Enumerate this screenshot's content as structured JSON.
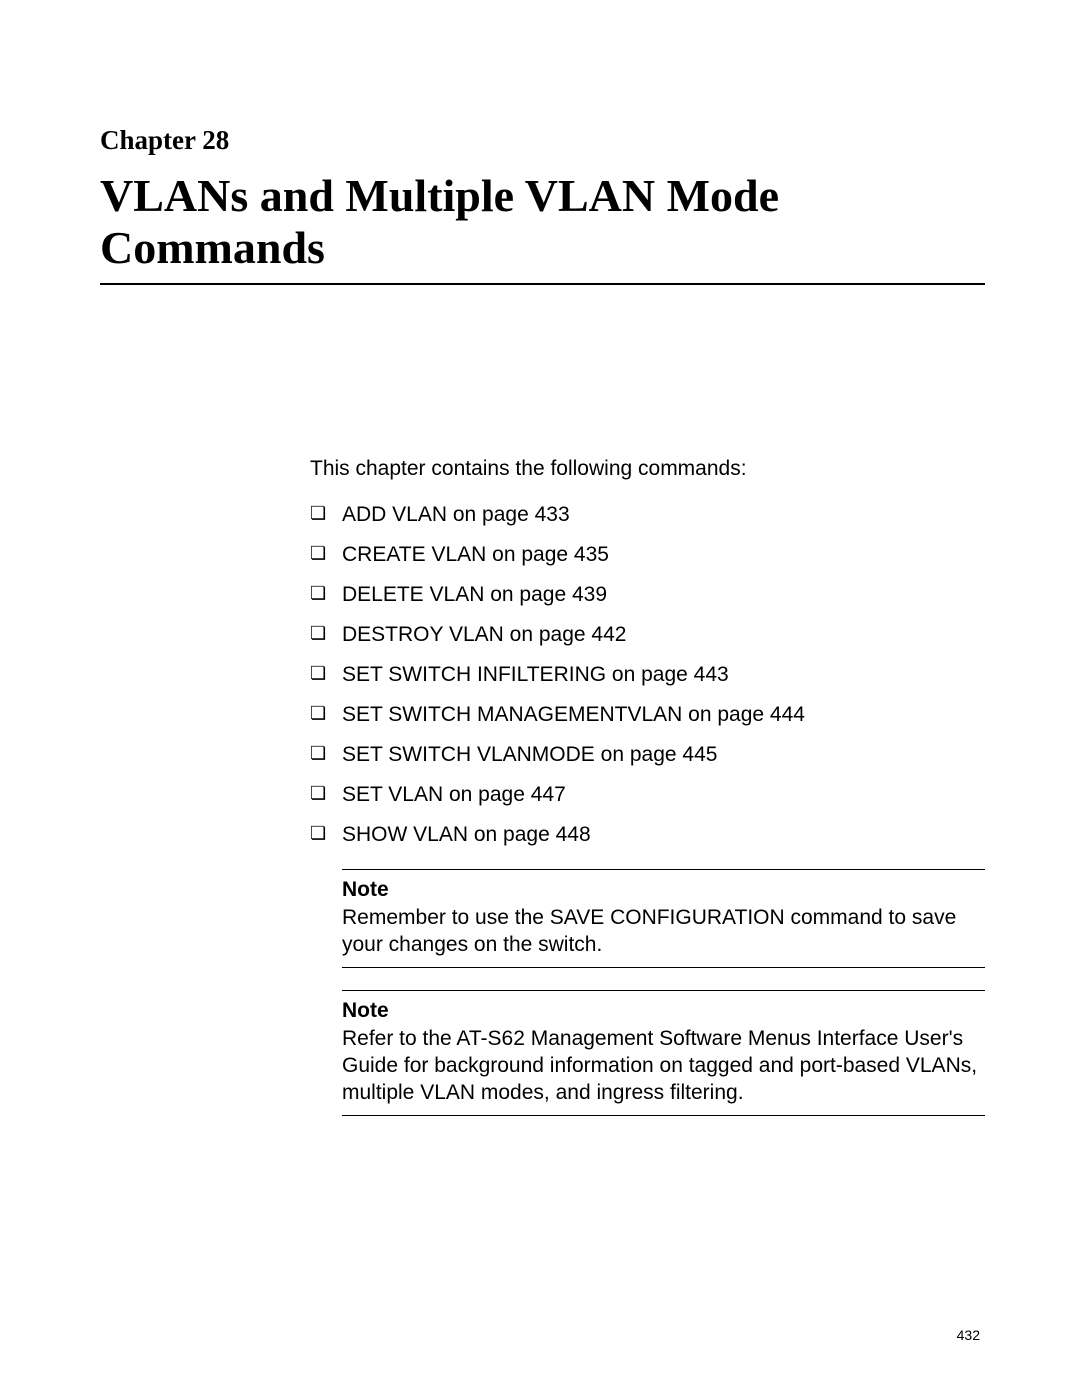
{
  "chapter": {
    "label": "Chapter 28",
    "title": "VLANs and Multiple VLAN Mode Commands"
  },
  "intro": "This chapter contains the following commands:",
  "commands": [
    "ADD VLAN on page 433",
    "CREATE VLAN on page 435",
    "DELETE VLAN on page 439",
    "DESTROY VLAN on page 442",
    "SET SWITCH INFILTERING on page 443",
    "SET SWITCH MANAGEMENTVLAN on page 444",
    "SET SWITCH VLANMODE on page 445",
    "SET VLAN on page 447",
    "SHOW VLAN on page 448"
  ],
  "notes": [
    {
      "label": "Note",
      "text": "Remember to use the SAVE CONFIGURATION command to save your changes on the switch."
    },
    {
      "label": "Note",
      "text": "Refer to the AT-S62 Management Software Menus Interface User's Guide for background information on tagged and port-based VLANs, multiple VLAN modes, and ingress filtering."
    }
  ],
  "pageNumber": "432"
}
